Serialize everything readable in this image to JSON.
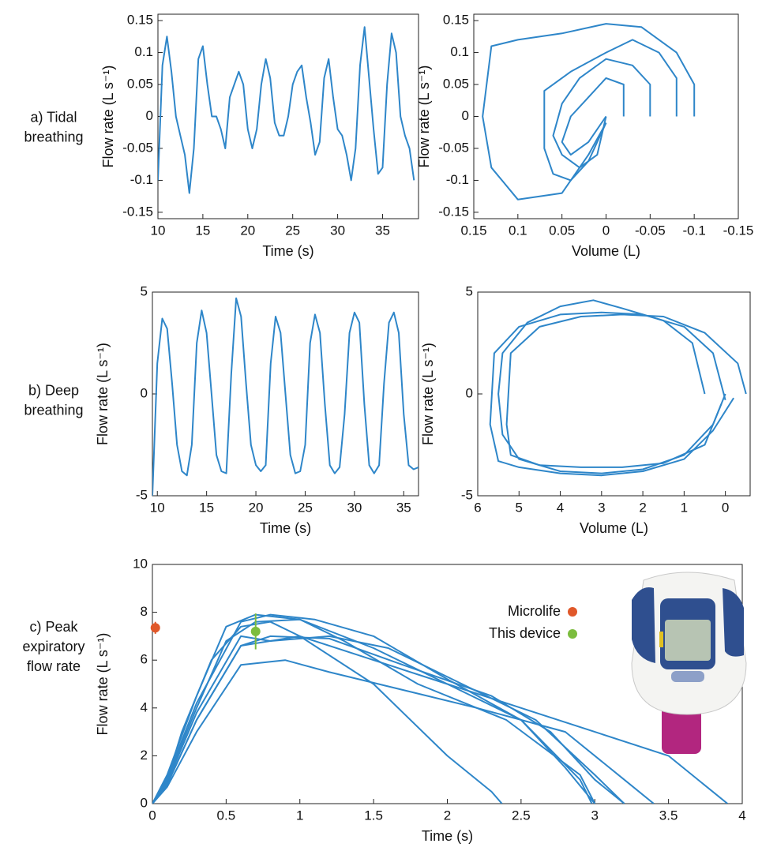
{
  "row_labels": [
    [
      "a) Tidal",
      "breathing"
    ],
    [
      "b) Deep",
      "breathing"
    ],
    [
      "c) Peak",
      "expiratory",
      "flow rate"
    ]
  ],
  "chart_data": [
    {
      "type": "line",
      "xlabel": "Time (s)",
      "ylabel": "Flow rate (L s⁻¹)",
      "x": [
        10,
        10.5,
        11,
        11.5,
        12,
        12.5,
        13,
        13.5,
        14,
        14.5,
        15,
        15.5,
        16,
        16.5,
        17,
        17.5,
        18,
        18.5,
        19,
        19.5,
        20,
        20.5,
        21,
        21.5,
        22,
        22.5,
        23,
        23.5,
        24,
        24.5,
        25,
        25.5,
        26,
        26.5,
        27,
        27.5,
        28,
        28.5,
        29,
        29.5,
        30,
        30.5,
        31,
        31.5,
        32,
        32.5,
        33,
        33.5,
        34,
        34.5,
        35,
        35.5,
        36,
        36.5,
        37,
        37.5,
        38,
        38.5
      ],
      "series": [
        {
          "color": "#2e86c9",
          "values": [
            -0.1,
            0.08,
            0.125,
            0.07,
            0,
            -0.03,
            -0.06,
            -0.12,
            -0.05,
            0.09,
            0.11,
            0.05,
            0,
            0,
            -0.02,
            -0.05,
            0.03,
            0.05,
            0.07,
            0.05,
            -0.02,
            -0.05,
            -0.02,
            0.05,
            0.09,
            0.06,
            -0.01,
            -0.03,
            -0.03,
            0,
            0.05,
            0.07,
            0.08,
            0.03,
            -0.01,
            -0.06,
            -0.04,
            0.06,
            0.09,
            0.03,
            -0.02,
            -0.03,
            -0.06,
            -0.1,
            -0.05,
            0.08,
            0.14,
            0.06,
            -0.02,
            -0.09,
            -0.08,
            0.05,
            0.13,
            0.1,
            0,
            -0.03,
            -0.05,
            -0.1
          ]
        }
      ],
      "xlim": [
        10,
        39
      ],
      "xticks": [
        10,
        15,
        20,
        25,
        30,
        35
      ],
      "ylim": [
        -0.16,
        0.16
      ],
      "yticks": [
        -0.15,
        -0.1,
        -0.05,
        0,
        0.05,
        0.1,
        0.15
      ]
    },
    {
      "type": "line",
      "xlabel": "Volume (L)",
      "ylabel": "Flow rate (L s⁻¹)",
      "series": [
        {
          "color": "#2e86c9",
          "x": [
            -0.1,
            -0.1,
            -0.08,
            -0.04,
            0,
            0.05,
            0.1,
            0.13,
            0.14,
            0.13,
            0.1,
            0.05,
            0.02,
            0
          ],
          "values": [
            0,
            0.05,
            0.1,
            0.14,
            0.145,
            0.13,
            0.12,
            0.11,
            0,
            -0.08,
            -0.13,
            -0.12,
            -0.06,
            -0.01
          ]
        },
        {
          "color": "#2e86c9",
          "x": [
            -0.08,
            -0.08,
            -0.06,
            -0.03,
            0,
            0.04,
            0.07,
            0.07,
            0.06,
            0.04,
            0.02,
            0
          ],
          "values": [
            0,
            0.06,
            0.1,
            0.12,
            0.1,
            0.07,
            0.04,
            -0.05,
            -0.09,
            -0.1,
            -0.07,
            -0.01
          ]
        },
        {
          "color": "#2e86c9",
          "x": [
            -0.05,
            -0.05,
            -0.03,
            0,
            0.03,
            0.05,
            0.06,
            0.05,
            0.03,
            0.01,
            0
          ],
          "values": [
            0,
            0.05,
            0.08,
            0.09,
            0.06,
            0.02,
            -0.03,
            -0.06,
            -0.08,
            -0.06,
            0
          ]
        },
        {
          "color": "#2e86c9",
          "x": [
            -0.02,
            -0.02,
            0,
            0.02,
            0.04,
            0.05,
            0.04,
            0.02,
            0
          ],
          "values": [
            0,
            0.05,
            0.06,
            0.03,
            0,
            -0.04,
            -0.06,
            -0.04,
            0
          ]
        }
      ],
      "xlim": [
        0.15,
        -0.15
      ],
      "xticks": [
        0.15,
        0.1,
        0.05,
        0,
        -0.05,
        -0.1,
        -0.15
      ],
      "ylim": [
        -0.16,
        0.16
      ],
      "yticks": [
        -0.15,
        -0.1,
        -0.05,
        0,
        0.05,
        0.1,
        0.15
      ]
    },
    {
      "type": "line",
      "xlabel": "Time (s)",
      "ylabel": "Flow rate (L s⁻¹)",
      "x": [
        9.5,
        10,
        10.5,
        11,
        11.5,
        12,
        12.5,
        13,
        13.5,
        14,
        14.5,
        15,
        15.5,
        16,
        16.5,
        17,
        17.5,
        18,
        18.5,
        19,
        19.5,
        20,
        20.5,
        21,
        21.5,
        22,
        22.5,
        23,
        23.5,
        24,
        24.5,
        25,
        25.5,
        26,
        26.5,
        27,
        27.5,
        28,
        28.5,
        29,
        29.5,
        30,
        30.5,
        31,
        31.5,
        32,
        32.5,
        33,
        33.5,
        34,
        34.5,
        35,
        35.5,
        36,
        36.5
      ],
      "series": [
        {
          "color": "#2e86c9",
          "values": [
            -5,
            1.5,
            3.7,
            3.2,
            0.5,
            -2.5,
            -3.8,
            -4,
            -2.5,
            2.5,
            4.1,
            3,
            0,
            -3,
            -3.8,
            -3.9,
            1,
            4.7,
            3.8,
            0.5,
            -2.5,
            -3.5,
            -3.8,
            -3.5,
            1.5,
            3.8,
            3,
            0,
            -3,
            -3.9,
            -3.8,
            -2.5,
            2.5,
            3.9,
            3,
            -0.5,
            -3.5,
            -3.9,
            -3.6,
            -1,
            3,
            4,
            3.5,
            -0.5,
            -3.5,
            -3.9,
            -3.5,
            0.5,
            3.5,
            4,
            3,
            -1,
            -3.5,
            -3.7,
            -3.6
          ]
        }
      ],
      "xlim": [
        9.5,
        36.5
      ],
      "xticks": [
        10,
        15,
        20,
        25,
        30,
        35
      ],
      "ylim": [
        -5,
        5
      ],
      "yticks": [
        -5,
        0,
        5
      ]
    },
    {
      "type": "line",
      "xlabel": "Volume (L)",
      "ylabel": "Flow rate (L s⁻¹)",
      "series": [
        {
          "color": "#2e86c9",
          "x": [
            0.5,
            0.8,
            1.5,
            2.5,
            3.2,
            4,
            4.8,
            5.4,
            5.5,
            5.4,
            5,
            4,
            3,
            2,
            1,
            0.3,
            0
          ],
          "values": [
            0,
            2.5,
            3.6,
            4.2,
            4.6,
            4.3,
            3.5,
            2,
            0,
            -2,
            -3.2,
            -3.8,
            -3.9,
            -3.7,
            -3,
            -1.5,
            0
          ]
        },
        {
          "color": "#2e86c9",
          "x": [
            0,
            0.3,
            1,
            2,
            3,
            4,
            5,
            5.6,
            5.7,
            5.5,
            5,
            4,
            3,
            2,
            1,
            0.3,
            -0.2
          ],
          "values": [
            -0.3,
            2,
            3.3,
            3.9,
            4,
            3.9,
            3.3,
            2,
            -1.5,
            -3.3,
            -3.6,
            -3.9,
            -4,
            -3.8,
            -3.2,
            -1.8,
            -0.2
          ]
        },
        {
          "color": "#2e86c9",
          "x": [
            -0.5,
            -0.3,
            0.5,
            1.5,
            2.5,
            3.5,
            4.5,
            5.2,
            5.3,
            5.2,
            4.5,
            3.5,
            2.5,
            1.5,
            0.5,
            0.1
          ],
          "values": [
            0,
            1.5,
            3,
            3.8,
            3.9,
            3.8,
            3.3,
            2,
            -1.5,
            -3,
            -3.5,
            -3.6,
            -3.6,
            -3.4,
            -2.5,
            -0.5
          ]
        }
      ],
      "xlim": [
        6,
        -0.6
      ],
      "xticks": [
        6,
        5,
        4,
        3,
        2,
        1,
        0
      ],
      "ylim": [
        -5,
        5
      ],
      "yticks": [
        -5,
        0,
        5
      ]
    },
    {
      "type": "line",
      "xlabel": "Time (s)",
      "ylabel": "Flow rate (L s⁻¹)",
      "series": [
        {
          "color": "#2e86c9",
          "x": [
            0,
            0.1,
            0.2,
            0.4,
            0.6,
            0.8,
            1,
            1.5,
            2,
            2.3,
            2.37
          ],
          "values": [
            0,
            1,
            3,
            6,
            7.4,
            7.6,
            7,
            5,
            2,
            0.5,
            0
          ]
        },
        {
          "color": "#2e86c9",
          "x": [
            0,
            0.1,
            0.3,
            0.5,
            0.7,
            1,
            1.5,
            2,
            2.5,
            2.9,
            2.98
          ],
          "values": [
            0,
            1.2,
            4.5,
            7.4,
            7.9,
            7.7,
            6.5,
            5,
            3.5,
            1,
            0
          ]
        },
        {
          "color": "#2e86c9",
          "x": [
            0,
            0.1,
            0.3,
            0.5,
            0.7,
            1,
            1.3,
            1.8,
            2.4,
            2.9,
            3
          ],
          "values": [
            0,
            1,
            4,
            6.8,
            7.6,
            7.7,
            6.8,
            5,
            3.5,
            1.2,
            0
          ]
        },
        {
          "color": "#2e86c9",
          "x": [
            0,
            0.1,
            0.3,
            0.6,
            0.8,
            1.2,
            1.7,
            2.3,
            2.7,
            3,
            3.2
          ],
          "values": [
            0,
            0.8,
            3.5,
            6.6,
            7,
            6.9,
            5.8,
            4.5,
            3,
            1,
            0
          ]
        },
        {
          "color": "#2e86c9",
          "x": [
            0,
            0.1,
            0.3,
            0.6,
            0.9,
            1.2,
            1.6,
            2.2,
            2.8,
            3.2,
            3.4
          ],
          "values": [
            0,
            0.7,
            3,
            5.8,
            6,
            5.5,
            4.9,
            4,
            3,
            1,
            0
          ]
        },
        {
          "color": "#2e86c9",
          "x": [
            0,
            0.1,
            0.3,
            0.6,
            0.8,
            1.2,
            1.6,
            2.1,
            2.6,
            3,
            3.2
          ],
          "values": [
            0,
            0.9,
            3.8,
            7,
            6.8,
            7,
            6.5,
            5,
            3.5,
            1.2,
            0
          ]
        },
        {
          "color": "#2e86c9",
          "x": [
            0,
            0.1,
            0.3,
            0.6,
            0.8,
            1.1,
            1.5,
            2,
            2.5,
            2.8,
            3
          ],
          "values": [
            0,
            1.1,
            4.2,
            7.6,
            7.9,
            7.7,
            7,
            5.2,
            3.5,
            1.5,
            0
          ]
        },
        {
          "color": "#2e86c9",
          "x": [
            0,
            0.1,
            0.3,
            0.6,
            1,
            1.5,
            2,
            2.5,
            3,
            3.5,
            3.9
          ],
          "values": [
            0,
            0.8,
            3.5,
            6.6,
            7,
            6,
            5,
            4,
            3,
            2,
            0
          ]
        }
      ],
      "points": [
        {
          "name": "Microlife",
          "color": "#e0582a",
          "x": 0.02,
          "value": 7.35,
          "error": 0.25
        },
        {
          "name": "This device",
          "color": "#7cbd3e",
          "x": 0.7,
          "value": 7.2,
          "error": 0.75
        }
      ],
      "xlim": [
        0,
        4
      ],
      "xticks": [
        0,
        0.5,
        1,
        1.5,
        2,
        2.5,
        3,
        3.5,
        4
      ],
      "ylim": [
        0,
        10
      ],
      "yticks": [
        0,
        2,
        4,
        6,
        8,
        10
      ]
    }
  ]
}
